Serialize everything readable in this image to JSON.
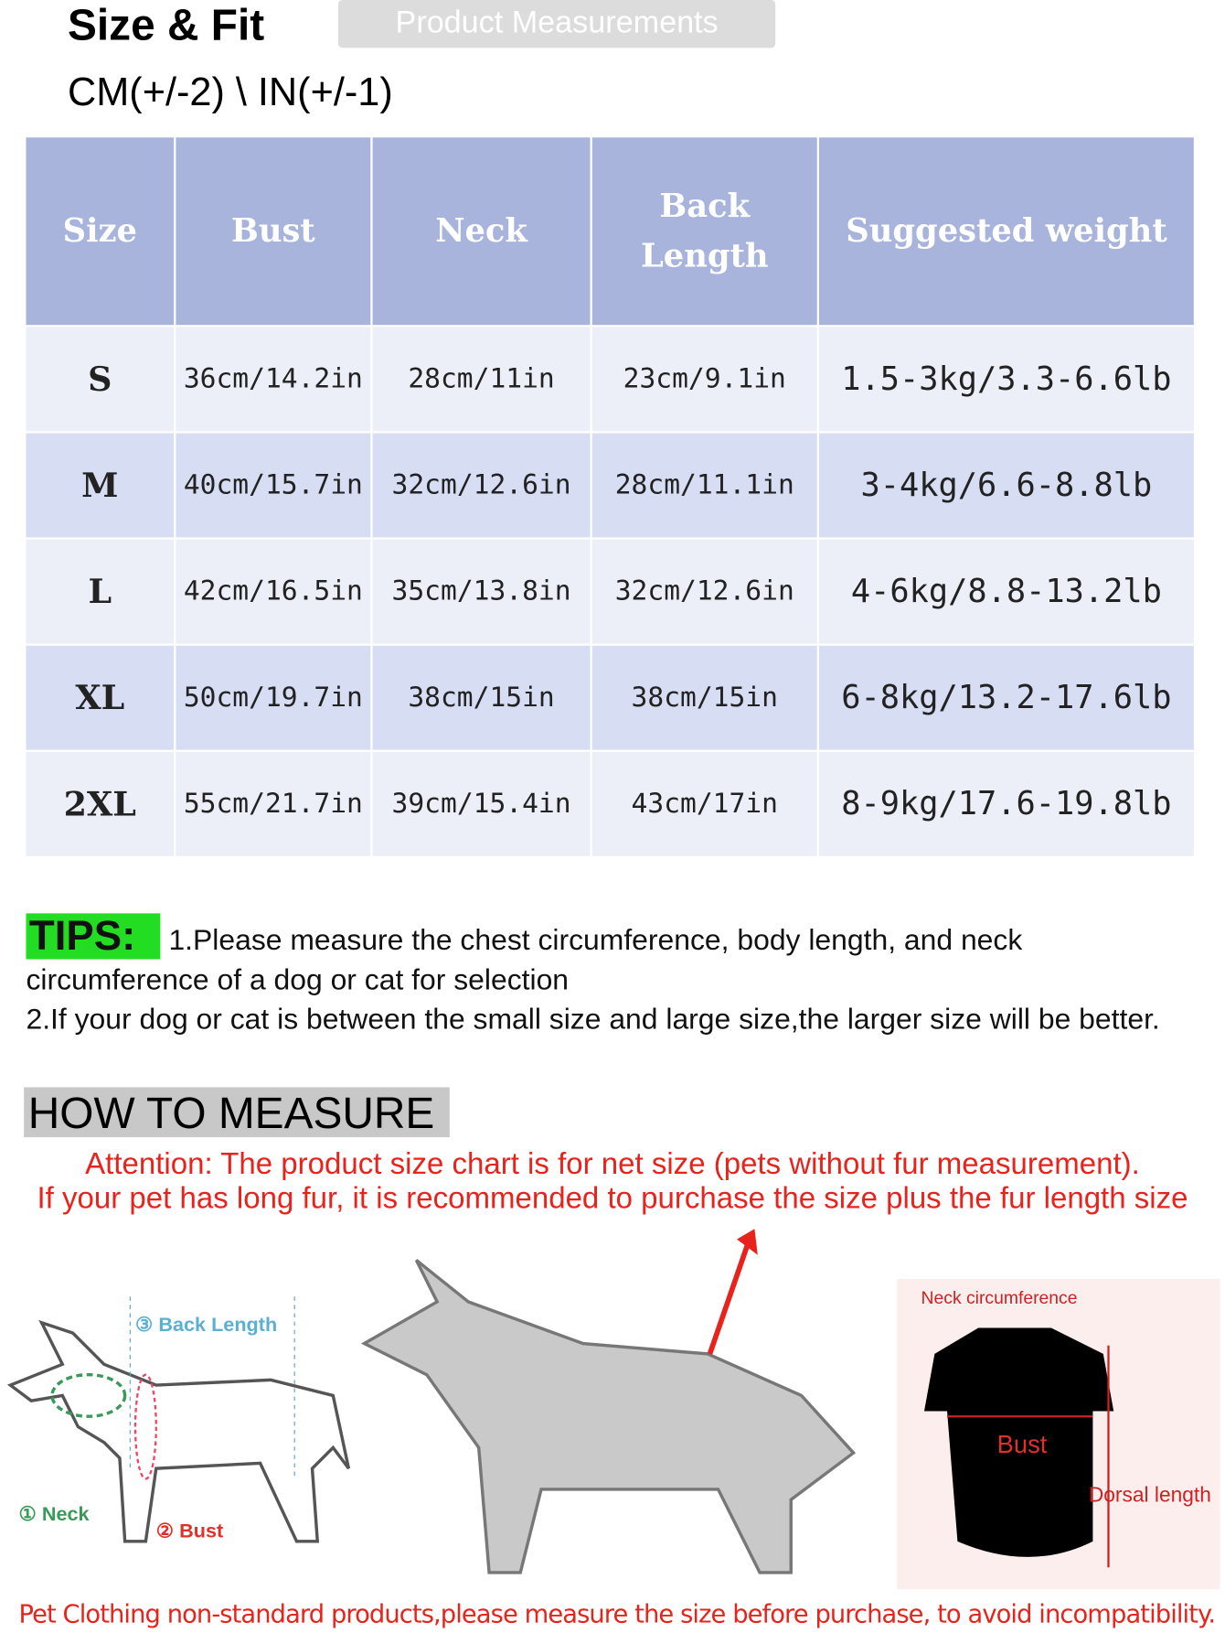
{
  "header": {
    "title": "Size & Fit",
    "tab": "Product Measurements",
    "units": "CM(+/-2) \\ IN(+/-1)"
  },
  "table": {
    "columns": [
      "Size",
      "Bust",
      "Neck",
      "Back Length",
      "Suggested weight"
    ],
    "rows": [
      [
        "S",
        "36cm/14.2in",
        "28cm/11in",
        "23cm/9.1in",
        "1.5-3kg/3.3-6.6lb"
      ],
      [
        "M",
        "40cm/15.7in",
        "32cm/12.6in",
        "28cm/11.1in",
        "3-4kg/6.6-8.8lb"
      ],
      [
        "L",
        "42cm/16.5in",
        "35cm/13.8in",
        "32cm/12.6in",
        "4-6kg/8.8-13.2lb"
      ],
      [
        "XL",
        "50cm/19.7in",
        "38cm/15in",
        "38cm/15in",
        "6-8kg/13.2-17.6lb"
      ],
      [
        "2XL",
        "55cm/21.7in",
        "39cm/15.4in",
        "43cm/17in",
        "8-9kg/17.6-19.8lb"
      ]
    ]
  },
  "tips": {
    "label": "TIPS:",
    "line1": "1.Please measure the chest circumference, body length, and neck circumference of a dog or cat for selection",
    "line2": "2.If your dog or cat is between the small size and large size,the larger size will be better."
  },
  "measure": {
    "title": "HOW TO MEASURE",
    "attention1": "Attention: The product size chart is for net size (pets without fur measurement).",
    "attention2": "If your pet has long fur, it is recommended to purchase the size plus the fur length size"
  },
  "diagram": {
    "back_length": "③ Back Length",
    "neck": "① Neck",
    "bust": "② Bust",
    "neck_circumference": "Neck circumference",
    "shirt_bust": "Bust",
    "dorsal_length": "Dorsal length"
  },
  "footer": "Pet Clothing non-standard products,please measure the size before purchase, to avoid incompatibility."
}
